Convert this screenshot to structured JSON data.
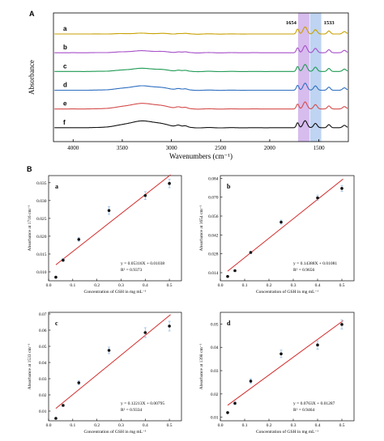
{
  "panel_labels": {
    "a": "A",
    "b": "B"
  },
  "chart_data": [
    {
      "type": "line",
      "panel": "A",
      "xlabel": "Wavenumbers (cm⁻¹)",
      "ylabel": "Absorbance",
      "xlim": [
        4200,
        1200
      ],
      "x_reversed": true,
      "xticks": [
        4000,
        3500,
        3000,
        2500,
        2000,
        1500
      ],
      "series": [
        {
          "name": "a",
          "color": "#c8a000"
        },
        {
          "name": "b",
          "color": "#a64fc8"
        },
        {
          "name": "c",
          "color": "#1f9a54"
        },
        {
          "name": "d",
          "color": "#2f6fc0"
        },
        {
          "name": "e",
          "color": "#d44c4c"
        },
        {
          "name": "f",
          "color": "#111111"
        }
      ],
      "highlight_bands": [
        {
          "label": "1654",
          "center": 1654,
          "color": "#c9a5e8"
        },
        {
          "label": "1533",
          "center": 1533,
          "color": "#a9c6ee"
        }
      ]
    },
    {
      "type": "scatter",
      "panel": "a",
      "xlabel": "Concentration of GSH in mg mL⁻¹",
      "ylabel": "Absorbance at 1716 cm⁻¹",
      "xlim": [
        0,
        0.55
      ],
      "ylim": [
        0.0075,
        0.037
      ],
      "xticks": [
        0.0,
        0.1,
        0.2,
        0.3,
        0.4,
        0.5
      ],
      "xticklabels": [
        "0.0",
        "0.1",
        "0.2",
        "0.3",
        "0.4",
        "0.5"
      ],
      "yticks": [
        0.01,
        0.015,
        0.02,
        0.025,
        0.03,
        0.035
      ],
      "yticklabels": [
        "0.010",
        "0.015",
        "0.020",
        "0.025",
        "0.030",
        "0.035"
      ],
      "x": [
        0.03,
        0.06,
        0.125,
        0.25,
        0.4,
        0.5
      ],
      "y": [
        0.0085,
        0.0133,
        0.0191,
        0.0272,
        0.0314,
        0.0348
      ],
      "err": [
        0.0002,
        0.0004,
        0.0005,
        0.0011,
        0.0011,
        0.0012
      ],
      "fit_slope": 0.05316,
      "fit_intercept": 0.01038,
      "equation": "y = 0.05316X + 0.01038",
      "r2": "R² = 0.9373"
    },
    {
      "type": "scatter",
      "panel": "b",
      "xlabel": "Concentration of GSH in mg mL⁻¹",
      "ylabel": "Absorbance at 1654 cm⁻¹",
      "xlim": [
        0,
        0.55
      ],
      "ylim": [
        0.008,
        0.086
      ],
      "xticks": [
        0.0,
        0.1,
        0.2,
        0.3,
        0.4,
        0.5
      ],
      "xticklabels": [
        "0.0",
        "0.1",
        "0.2",
        "0.3",
        "0.4",
        "0.5"
      ],
      "yticks": [
        0.014,
        0.028,
        0.042,
        0.056,
        0.07,
        0.084
      ],
      "yticklabels": [
        "0.014",
        "0.028",
        "0.042",
        "0.056",
        "0.070",
        "0.084"
      ],
      "x": [
        0.03,
        0.06,
        0.125,
        0.25,
        0.4,
        0.5
      ],
      "y": [
        0.0112,
        0.0155,
        0.029,
        0.0515,
        0.0695,
        0.0765
      ],
      "err": [
        0.0005,
        0.0005,
        0.0008,
        0.0015,
        0.002,
        0.0022
      ],
      "fit_slope": 0.14388,
      "fit_intercept": 0.01081,
      "equation": "y = 0.14388X + 0.01081",
      "r2": "R² = 0.9656"
    },
    {
      "type": "scatter",
      "panel": "c",
      "xlabel": "Concentration of GSH in mg mL⁻¹",
      "ylabel": "Absorbance at 1533 cm⁻¹",
      "xlim": [
        0,
        0.55
      ],
      "ylim": [
        0.004,
        0.071
      ],
      "xticks": [
        0.0,
        0.1,
        0.2,
        0.3,
        0.4,
        0.5
      ],
      "xticklabels": [
        "0.0",
        "0.1",
        "0.2",
        "0.3",
        "0.4",
        "0.5"
      ],
      "yticks": [
        0.01,
        0.02,
        0.03,
        0.04,
        0.05,
        0.06,
        0.07
      ],
      "yticklabels": [
        "0.01",
        "0.02",
        "0.03",
        "0.04",
        "0.05",
        "0.06",
        "0.07"
      ],
      "x": [
        0.03,
        0.06,
        0.125,
        0.25,
        0.4,
        0.5
      ],
      "y": [
        0.0055,
        0.0135,
        0.0275,
        0.0475,
        0.0585,
        0.0625
      ],
      "err": [
        0.0003,
        0.0006,
        0.0012,
        0.002,
        0.003,
        0.003
      ],
      "fit_slope": 0.12213,
      "fit_intercept": 0.00795,
      "equation": "y = 0.12213X + 0.00795",
      "r2": "R² = 0.9334"
    },
    {
      "type": "scatter",
      "panel": "d",
      "xlabel": "Concentration of GSH in mg mL⁻¹",
      "ylabel": "Absorbance at 1398 cm⁻¹",
      "xlim": [
        0,
        0.55
      ],
      "ylim": [
        0.0085,
        0.055
      ],
      "xticks": [
        0.0,
        0.1,
        0.2,
        0.3,
        0.4,
        0.5
      ],
      "xticklabels": [
        "0.0",
        "0.1",
        "0.2",
        "0.3",
        "0.4",
        "0.5"
      ],
      "yticks": [
        0.01,
        0.02,
        0.03,
        0.04,
        0.05
      ],
      "yticklabels": [
        "0.01",
        "0.02",
        "0.03",
        "0.04",
        "0.05"
      ],
      "x": [
        0.03,
        0.06,
        0.125,
        0.25,
        0.4,
        0.5
      ],
      "y": [
        0.012,
        0.016,
        0.0255,
        0.0372,
        0.041,
        0.0498
      ],
      "err": [
        0.0003,
        0.0006,
        0.001,
        0.0016,
        0.0018,
        0.002
      ],
      "fit_slope": 0.0763,
      "fit_intercept": 0.01287,
      "equation": "y = 0.0763X + 0.01287",
      "r2": "R² = 0.9464"
    }
  ],
  "colors": {
    "fit_line": "#d42a2a",
    "marker": "#111111",
    "error_bar": "#8ab4e0"
  }
}
